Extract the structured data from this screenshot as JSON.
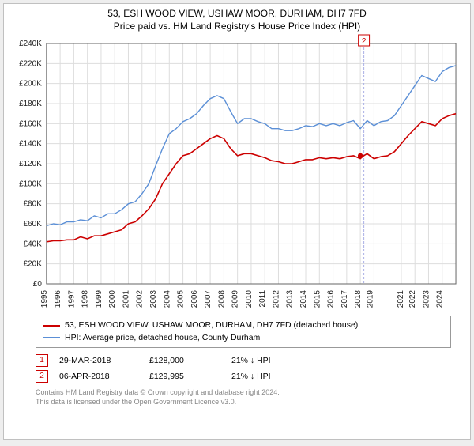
{
  "title": {
    "line1": "53, ESH WOOD VIEW, USHAW MOOR, DURHAM, DH7 7FD",
    "line2": "Price paid vs. HM Land Registry's House Price Index (HPI)"
  },
  "chart": {
    "type": "line",
    "background_color": "#ffffff",
    "grid_color": "#dddddd",
    "axis_color": "#666666",
    "title_fontsize": 12,
    "axis_fontsize": 10,
    "ylim": [
      0,
      240000
    ],
    "ytick_step": 20000,
    "ytick_labels": [
      "£0",
      "£20K",
      "£40K",
      "£60K",
      "£80K",
      "£100K",
      "£120K",
      "£140K",
      "£160K",
      "£180K",
      "£200K",
      "£220K",
      "£240K"
    ],
    "x_years": [
      1995,
      1996,
      1997,
      1998,
      1999,
      2000,
      2001,
      2002,
      2003,
      2004,
      2005,
      2006,
      2007,
      2008,
      2009,
      2010,
      2011,
      2012,
      2013,
      2014,
      2015,
      2016,
      2017,
      2018,
      2019,
      2021,
      2022,
      2023,
      2024
    ],
    "x_year_shift": {
      "2019": -2,
      "2021": 2
    },
    "xlim_year": [
      1995,
      2025
    ],
    "series": [
      {
        "id": "price_paid",
        "color": "#cc0000",
        "line_width": 1.6,
        "points": [
          [
            1995.0,
            42000
          ],
          [
            1995.5,
            43000
          ],
          [
            1996.0,
            43000
          ],
          [
            1996.5,
            44000
          ],
          [
            1997.0,
            44000
          ],
          [
            1997.5,
            47000
          ],
          [
            1998.0,
            45000
          ],
          [
            1998.5,
            48000
          ],
          [
            1999.0,
            48000
          ],
          [
            1999.5,
            50000
          ],
          [
            2000.0,
            52000
          ],
          [
            2000.5,
            54000
          ],
          [
            2001.0,
            60000
          ],
          [
            2001.5,
            62000
          ],
          [
            2002.0,
            68000
          ],
          [
            2002.5,
            75000
          ],
          [
            2003.0,
            85000
          ],
          [
            2003.5,
            100000
          ],
          [
            2004.0,
            110000
          ],
          [
            2004.5,
            120000
          ],
          [
            2005.0,
            128000
          ],
          [
            2005.5,
            130000
          ],
          [
            2006.0,
            135000
          ],
          [
            2006.5,
            140000
          ],
          [
            2007.0,
            145000
          ],
          [
            2007.5,
            148000
          ],
          [
            2008.0,
            145000
          ],
          [
            2008.5,
            135000
          ],
          [
            2009.0,
            128000
          ],
          [
            2009.5,
            130000
          ],
          [
            2010.0,
            130000
          ],
          [
            2010.5,
            128000
          ],
          [
            2011.0,
            126000
          ],
          [
            2011.5,
            123000
          ],
          [
            2012.0,
            122000
          ],
          [
            2012.5,
            120000
          ],
          [
            2013.0,
            120000
          ],
          [
            2013.5,
            122000
          ],
          [
            2014.0,
            124000
          ],
          [
            2014.5,
            124000
          ],
          [
            2015.0,
            126000
          ],
          [
            2015.5,
            125000
          ],
          [
            2016.0,
            126000
          ],
          [
            2016.5,
            125000
          ],
          [
            2017.0,
            127000
          ],
          [
            2017.5,
            128000
          ],
          [
            2018.0,
            125000
          ],
          [
            2018.25,
            128000
          ],
          [
            2018.5,
            130000
          ],
          [
            2019.0,
            125000
          ],
          [
            2019.5,
            127000
          ],
          [
            2020.0,
            128000
          ],
          [
            2020.5,
            132000
          ],
          [
            2021.0,
            140000
          ],
          [
            2021.5,
            148000
          ],
          [
            2022.0,
            155000
          ],
          [
            2022.5,
            162000
          ],
          [
            2023.0,
            160000
          ],
          [
            2023.5,
            158000
          ],
          [
            2024.0,
            165000
          ],
          [
            2024.5,
            168000
          ],
          [
            2025.0,
            170000
          ]
        ]
      },
      {
        "id": "hpi",
        "color": "#5b8fd6",
        "line_width": 1.4,
        "points": [
          [
            1995.0,
            58000
          ],
          [
            1995.5,
            60000
          ],
          [
            1996.0,
            59000
          ],
          [
            1996.5,
            62000
          ],
          [
            1997.0,
            62000
          ],
          [
            1997.5,
            64000
          ],
          [
            1998.0,
            63000
          ],
          [
            1998.5,
            68000
          ],
          [
            1999.0,
            66000
          ],
          [
            1999.5,
            70000
          ],
          [
            2000.0,
            70000
          ],
          [
            2000.5,
            74000
          ],
          [
            2001.0,
            80000
          ],
          [
            2001.5,
            82000
          ],
          [
            2002.0,
            90000
          ],
          [
            2002.5,
            100000
          ],
          [
            2003.0,
            118000
          ],
          [
            2003.5,
            135000
          ],
          [
            2004.0,
            150000
          ],
          [
            2004.5,
            155000
          ],
          [
            2005.0,
            162000
          ],
          [
            2005.5,
            165000
          ],
          [
            2006.0,
            170000
          ],
          [
            2006.5,
            178000
          ],
          [
            2007.0,
            185000
          ],
          [
            2007.5,
            188000
          ],
          [
            2008.0,
            185000
          ],
          [
            2008.5,
            172000
          ],
          [
            2009.0,
            160000
          ],
          [
            2009.5,
            165000
          ],
          [
            2010.0,
            165000
          ],
          [
            2010.5,
            162000
          ],
          [
            2011.0,
            160000
          ],
          [
            2011.5,
            155000
          ],
          [
            2012.0,
            155000
          ],
          [
            2012.5,
            153000
          ],
          [
            2013.0,
            153000
          ],
          [
            2013.5,
            155000
          ],
          [
            2014.0,
            158000
          ],
          [
            2014.5,
            157000
          ],
          [
            2015.0,
            160000
          ],
          [
            2015.5,
            158000
          ],
          [
            2016.0,
            160000
          ],
          [
            2016.5,
            158000
          ],
          [
            2017.0,
            161000
          ],
          [
            2017.5,
            163000
          ],
          [
            2018.0,
            155000
          ],
          [
            2018.5,
            163000
          ],
          [
            2019.0,
            158000
          ],
          [
            2019.5,
            162000
          ],
          [
            2020.0,
            163000
          ],
          [
            2020.5,
            168000
          ],
          [
            2021.0,
            178000
          ],
          [
            2021.5,
            188000
          ],
          [
            2022.0,
            198000
          ],
          [
            2022.5,
            208000
          ],
          [
            2023.0,
            205000
          ],
          [
            2023.5,
            202000
          ],
          [
            2024.0,
            212000
          ],
          [
            2024.5,
            216000
          ],
          [
            2025.0,
            218000
          ]
        ]
      }
    ],
    "sale_markers": [
      {
        "n": "2",
        "year": 2018.26,
        "price": 129995,
        "badge_y_value": 242000
      }
    ],
    "sale_marker_line_color": "#aab0e6",
    "sale_marker_dot": {
      "year": 2018.0,
      "price": 128000,
      "radius": 3.2,
      "color": "#cc0000"
    }
  },
  "legend": {
    "items": [
      {
        "color": "#cc0000",
        "label": "53, ESH WOOD VIEW, USHAW MOOR, DURHAM, DH7 7FD (detached house)"
      },
      {
        "color": "#5b8fd6",
        "label": "HPI: Average price, detached house, County Durham"
      }
    ]
  },
  "sales": [
    {
      "n": "1",
      "date": "29-MAR-2018",
      "price": "£128,000",
      "delta": "21% ↓ HPI"
    },
    {
      "n": "2",
      "date": "06-APR-2018",
      "price": "£129,995",
      "delta": "21% ↓ HPI"
    }
  ],
  "footer": {
    "line1": "Contains HM Land Registry data © Crown copyright and database right 2024.",
    "line2": "This data is licensed under the Open Government Licence v3.0."
  }
}
